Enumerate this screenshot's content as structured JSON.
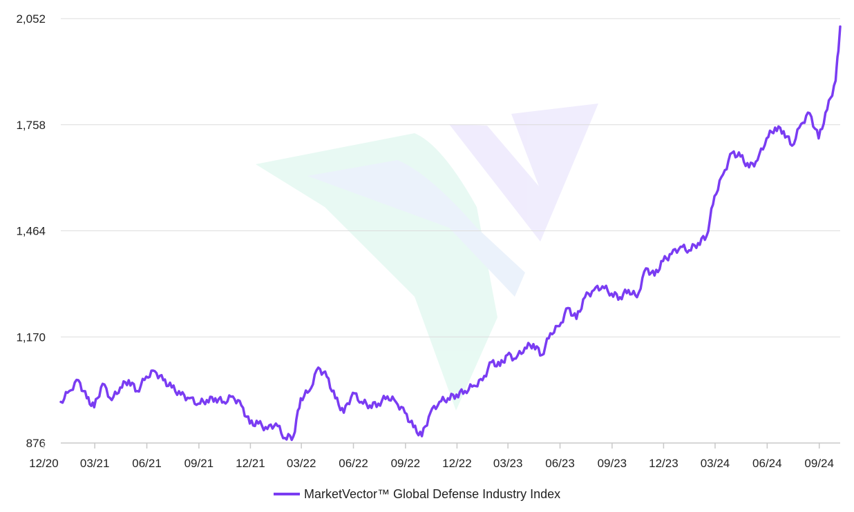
{
  "colors": {
    "line": "#7a3cf2",
    "grid": "#dcdcdc",
    "axis": "#c8c8c8",
    "text": "#222222"
  },
  "chart_data": {
    "type": "line",
    "title": "",
    "xlabel": "",
    "ylabel": "",
    "ylim": [
      876,
      2052
    ],
    "y_ticks": [
      "876",
      "1,170",
      "1,464",
      "1,758",
      "2,052"
    ],
    "y_tick_values": [
      876,
      1170,
      1464,
      1758,
      2052
    ],
    "x_ticks": [
      "12/20",
      "03/21",
      "06/21",
      "09/21",
      "12/21",
      "03/22",
      "06/22",
      "09/22",
      "12/22",
      "03/23",
      "06/23",
      "09/23",
      "12/23",
      "03/24",
      "06/24",
      "09/24"
    ],
    "x_tick_months": [
      "2020-12",
      "2021-03",
      "2021-06",
      "2021-09",
      "2021-12",
      "2022-03",
      "2022-06",
      "2022-09",
      "2022-12",
      "2023-03",
      "2023-06",
      "2023-09",
      "2023-12",
      "2024-03",
      "2024-06",
      "2024-09"
    ],
    "grid": true,
    "legend": "bottom",
    "series": [
      {
        "name": "MarketVector™ Global Defense Industry Index",
        "x": [
          "2020-12-31",
          "2021-01-15",
          "2021-01-31",
          "2021-02-15",
          "2021-02-28",
          "2021-03-15",
          "2021-03-31",
          "2021-04-15",
          "2021-04-30",
          "2021-05-15",
          "2021-05-31",
          "2021-06-15",
          "2021-06-30",
          "2021-07-15",
          "2021-07-31",
          "2021-08-15",
          "2021-08-31",
          "2021-09-15",
          "2021-09-30",
          "2021-10-15",
          "2021-10-31",
          "2021-11-15",
          "2021-11-30",
          "2021-12-15",
          "2021-12-31",
          "2022-01-15",
          "2022-01-31",
          "2022-02-15",
          "2022-02-28",
          "2022-03-15",
          "2022-03-31",
          "2022-04-15",
          "2022-04-30",
          "2022-05-15",
          "2022-05-31",
          "2022-06-15",
          "2022-06-30",
          "2022-07-15",
          "2022-07-31",
          "2022-08-15",
          "2022-08-31",
          "2022-09-15",
          "2022-09-30",
          "2022-10-15",
          "2022-10-31",
          "2022-11-15",
          "2022-11-30",
          "2022-12-15",
          "2022-12-31",
          "2023-01-15",
          "2023-01-31",
          "2023-02-15",
          "2023-02-28",
          "2023-03-15",
          "2023-03-31",
          "2023-04-15",
          "2023-04-30",
          "2023-05-15",
          "2023-05-31",
          "2023-06-15",
          "2023-06-30",
          "2023-07-15",
          "2023-07-31",
          "2023-08-15",
          "2023-08-31",
          "2023-09-15",
          "2023-09-30",
          "2023-10-15",
          "2023-10-31",
          "2023-11-15",
          "2023-11-30",
          "2023-12-15",
          "2023-12-31",
          "2024-01-15",
          "2024-01-31",
          "2024-02-15",
          "2024-02-29",
          "2024-03-15",
          "2024-03-31",
          "2024-04-15",
          "2024-04-30",
          "2024-05-15",
          "2024-05-31",
          "2024-06-15",
          "2024-06-30",
          "2024-07-15",
          "2024-07-31",
          "2024-08-15",
          "2024-08-31",
          "2024-09-15",
          "2024-09-30",
          "2024-10-08"
        ],
        "values": [
          990,
          1020,
          1050,
          1000,
          975,
          1040,
          995,
          1030,
          1050,
          1020,
          1060,
          1075,
          1050,
          1030,
          1010,
          1000,
          985,
          995,
          1000,
          990,
          1005,
          980,
          930,
          930,
          915,
          930,
          890,
          895,
          1000,
          1020,
          1085,
          1060,
          1000,
          960,
          1015,
          990,
          980,
          985,
          1005,
          990,
          960,
          920,
          895,
          960,
          990,
          1000,
          1010,
          1020,
          1035,
          1050,
          1100,
          1090,
          1120,
          1110,
          1140,
          1150,
          1120,
          1180,
          1200,
          1250,
          1220,
          1280,
          1300,
          1310,
          1290,
          1280,
          1300,
          1280,
          1360,
          1340,
          1380,
          1400,
          1420,
          1410,
          1430,
          1450,
          1560,
          1620,
          1680,
          1670,
          1640,
          1660,
          1720,
          1750,
          1740,
          1700,
          1760,
          1790,
          1720,
          1800,
          1880,
          2030
        ]
      }
    ]
  }
}
